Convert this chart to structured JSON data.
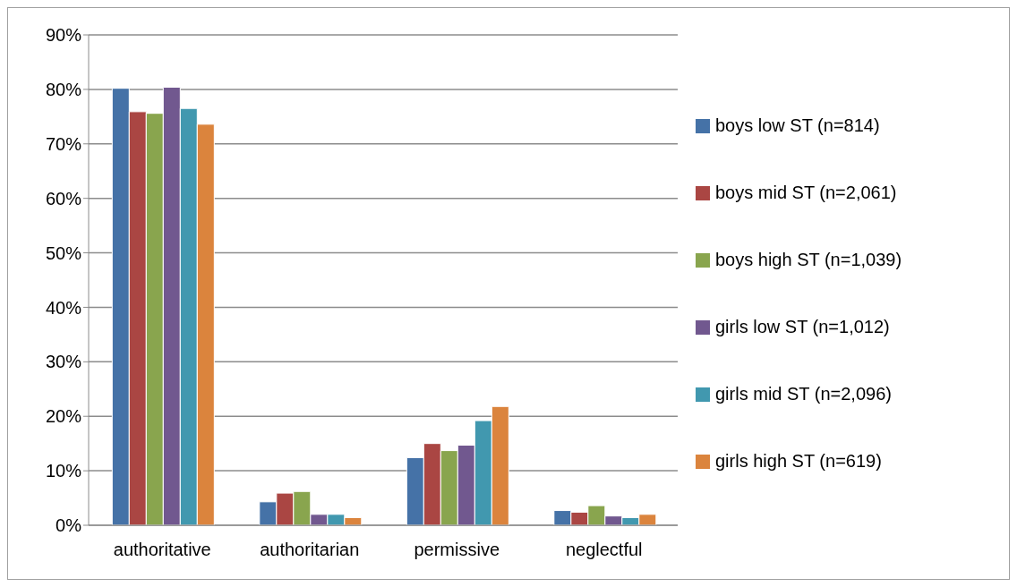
{
  "chart_data": {
    "type": "bar",
    "categories": [
      "authoritative",
      "authoritarian",
      "permissive",
      "neglectful"
    ],
    "series": [
      {
        "name": "boys low ST (n=814)",
        "color": "#4572a7",
        "values": [
          80.2,
          4.3,
          12.4,
          2.7
        ]
      },
      {
        "name": "boys mid ST (n=2,061)",
        "color": "#aa4643",
        "values": [
          75.9,
          5.9,
          15.0,
          2.4
        ]
      },
      {
        "name": "boys high ST (n=1,039)",
        "color": "#89a54e",
        "values": [
          75.6,
          6.2,
          13.7,
          3.6
        ]
      },
      {
        "name": "girls low ST (n=1,012)",
        "color": "#71588f",
        "values": [
          80.4,
          2.0,
          14.7,
          1.7
        ]
      },
      {
        "name": "girls mid ST (n=2,096)",
        "color": "#4198af",
        "values": [
          76.5,
          2.0,
          19.2,
          1.4
        ]
      },
      {
        "name": "girls high ST (n=619)",
        "color": "#db843d",
        "values": [
          73.6,
          1.4,
          21.8,
          2.0
        ]
      }
    ],
    "ylim": [
      0,
      90
    ],
    "yticks": [
      {
        "value": 0,
        "label": "0%"
      },
      {
        "value": 10,
        "label": "10%"
      },
      {
        "value": 20,
        "label": "20%"
      },
      {
        "value": 30,
        "label": "30%"
      },
      {
        "value": 40,
        "label": "40%"
      },
      {
        "value": 50,
        "label": "50%"
      },
      {
        "value": 60,
        "label": "60%"
      },
      {
        "value": 70,
        "label": "70%"
      },
      {
        "value": 80,
        "label": "80%"
      },
      {
        "value": 90,
        "label": "90%"
      }
    ],
    "grid": "y",
    "legend": "right"
  }
}
